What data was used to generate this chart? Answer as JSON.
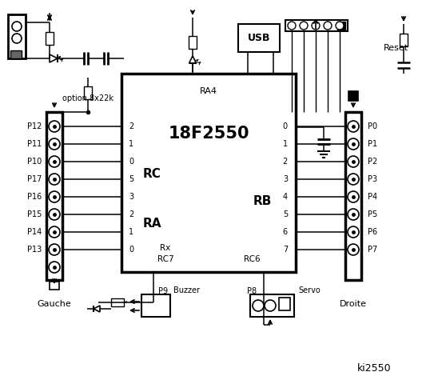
{
  "title": "ki2550",
  "chip_label": "18F2550",
  "chip_sublabel": "RA4",
  "bg_color": "#ffffff",
  "text_color": "#000000",
  "rc_pins": [
    "2",
    "1",
    "0",
    "5",
    "3",
    "2",
    "1",
    "0"
  ],
  "rc_labels": [
    "P12",
    "P11",
    "P10",
    "P17",
    "P16",
    "P15",
    "P14",
    "P13"
  ],
  "rb_pins": [
    "0",
    "1",
    "2",
    "3",
    "4",
    "5",
    "6",
    "7"
  ],
  "rb_labels": [
    "P0",
    "P1",
    "P2",
    "P3",
    "P4",
    "P5",
    "P6",
    "P7"
  ],
  "left_connector_label": "Gauche",
  "right_connector_label": "Droite",
  "option_label": "option 8x22k",
  "buzzer_label": "Buzzer",
  "servo_label": "Servo",
  "reset_label": "Reset",
  "usb_label": "USB",
  "ra_label": "RA",
  "rc_label": "RC",
  "rb_label": "RB",
  "rx_label": "Rx",
  "rc7_label": "RC7",
  "rc6_label": "RC6",
  "p8_label": "P8",
  "p9_label": "P9"
}
